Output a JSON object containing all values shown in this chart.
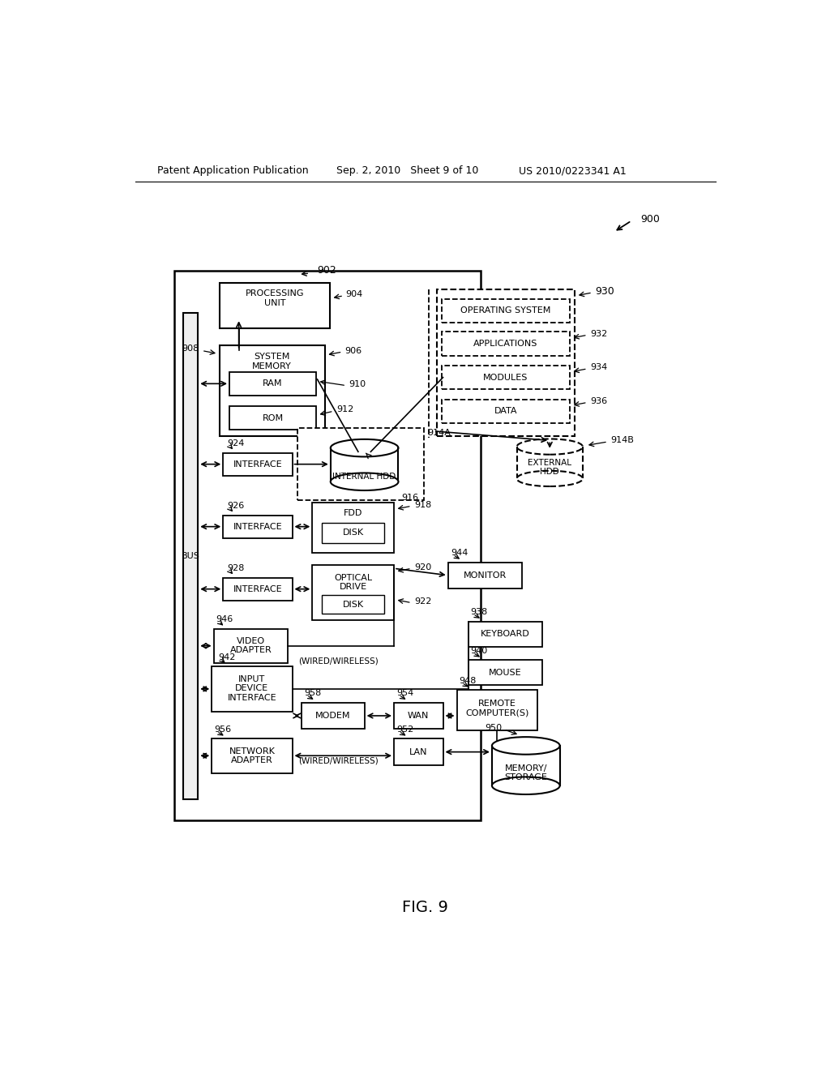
{
  "bg_color": "#ffffff",
  "header_left": "Patent Application Publication",
  "header_mid": "Sep. 2, 2010   Sheet 9 of 10",
  "header_right": "US 2010/0223341 A1"
}
